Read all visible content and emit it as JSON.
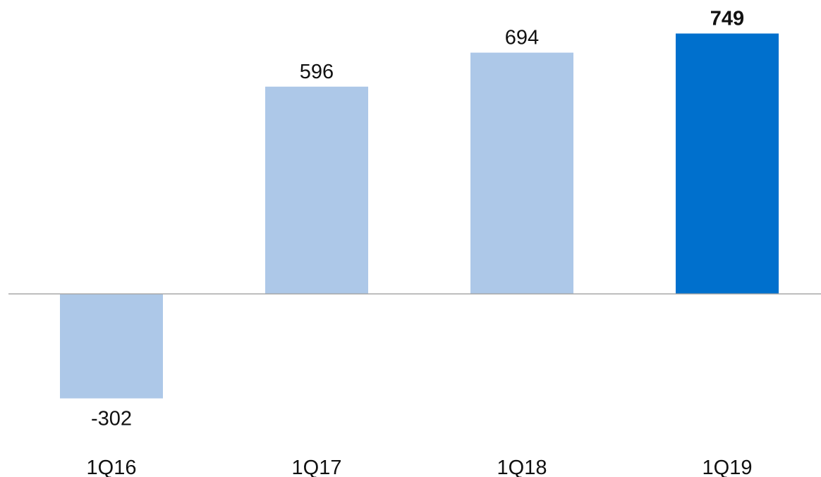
{
  "chart_data": {
    "type": "bar",
    "categories": [
      "1Q16",
      "1Q17",
      "1Q18",
      "1Q19"
    ],
    "values": [
      -302,
      596,
      694,
      749
    ],
    "data_labels": [
      "-302",
      "596",
      "694",
      "749"
    ],
    "highlight_index": 3,
    "title": "",
    "xlabel": "",
    "ylabel": "",
    "ylim": [
      -302,
      749
    ],
    "grid": false,
    "legend": "none",
    "colors": {
      "bar": "#adc8e8",
      "highlight_bar": "#0070cd",
      "baseline": "#a6a6a6",
      "text": "#111111"
    }
  }
}
